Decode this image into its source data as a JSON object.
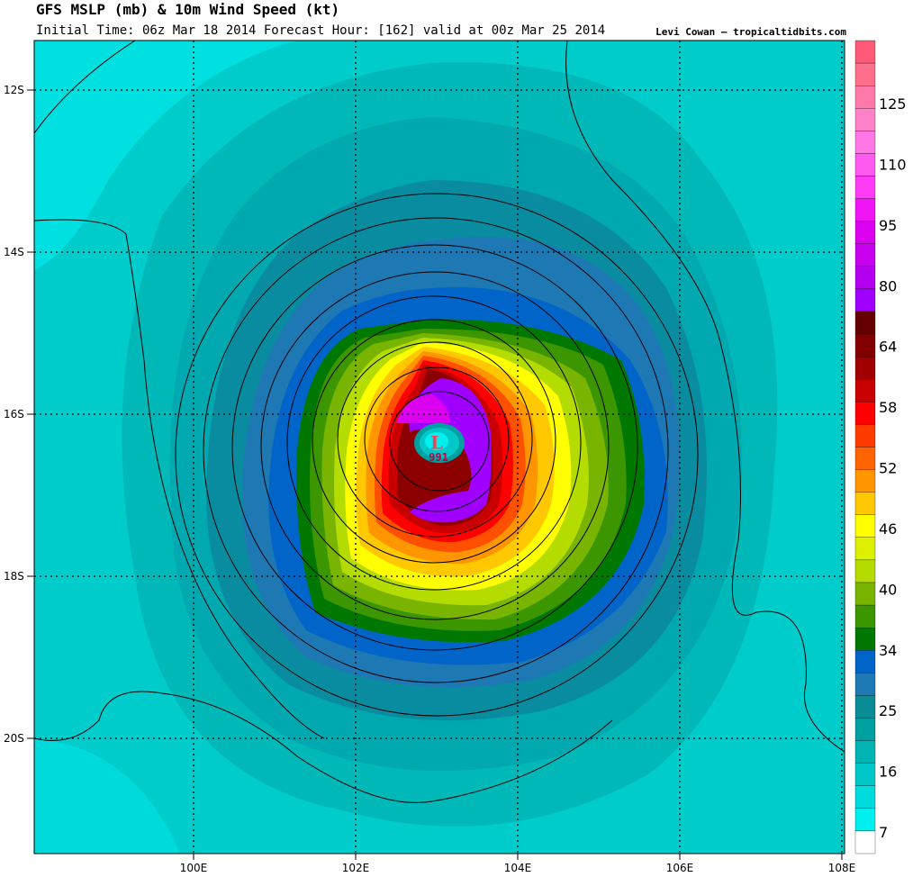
{
  "header": {
    "title": "GFS MSLP (mb) & 10m Wind Speed (kt)",
    "subtitle": "Initial Time: 06z Mar 18 2014 Forecast Hour: [162] valid at 00z Mar 25 2014",
    "credit": "Levi Cowan – tropicaltidbits.com"
  },
  "map": {
    "lat_labels": [
      "12S",
      "14S",
      "16S",
      "18S",
      "20S"
    ],
    "lon_labels": [
      "100E",
      "102E",
      "104E",
      "106E",
      "108E"
    ],
    "low": {
      "symbol": "L",
      "pressure": "991"
    }
  },
  "colorbar": {
    "labels": [
      "125",
      "110",
      "95",
      "80",
      "64",
      "58",
      "52",
      "46",
      "40",
      "34",
      "25",
      "16",
      "7"
    ],
    "colors": [
      "#ff5a78",
      "#ff6e8c",
      "#ff78aa",
      "#ff82c8",
      "#ff78e6",
      "#ff5af0",
      "#ff3cf5",
      "#f014f5",
      "#dc00f0",
      "#c800f0",
      "#b400f0",
      "#a000ff",
      "#640000",
      "#820000",
      "#a00000",
      "#c80000",
      "#ff0000",
      "#ff3c00",
      "#ff6400",
      "#ff9600",
      "#ffc800",
      "#ffff00",
      "#dcf000",
      "#b4dc00",
      "#78b400",
      "#3c9600",
      "#007800",
      "#0064c8",
      "#1e78b4",
      "#0a8c96",
      "#00a0a0",
      "#00b4b4",
      "#00c8c8",
      "#00dcdc",
      "#00f0f0",
      "#ffffff"
    ]
  }
}
